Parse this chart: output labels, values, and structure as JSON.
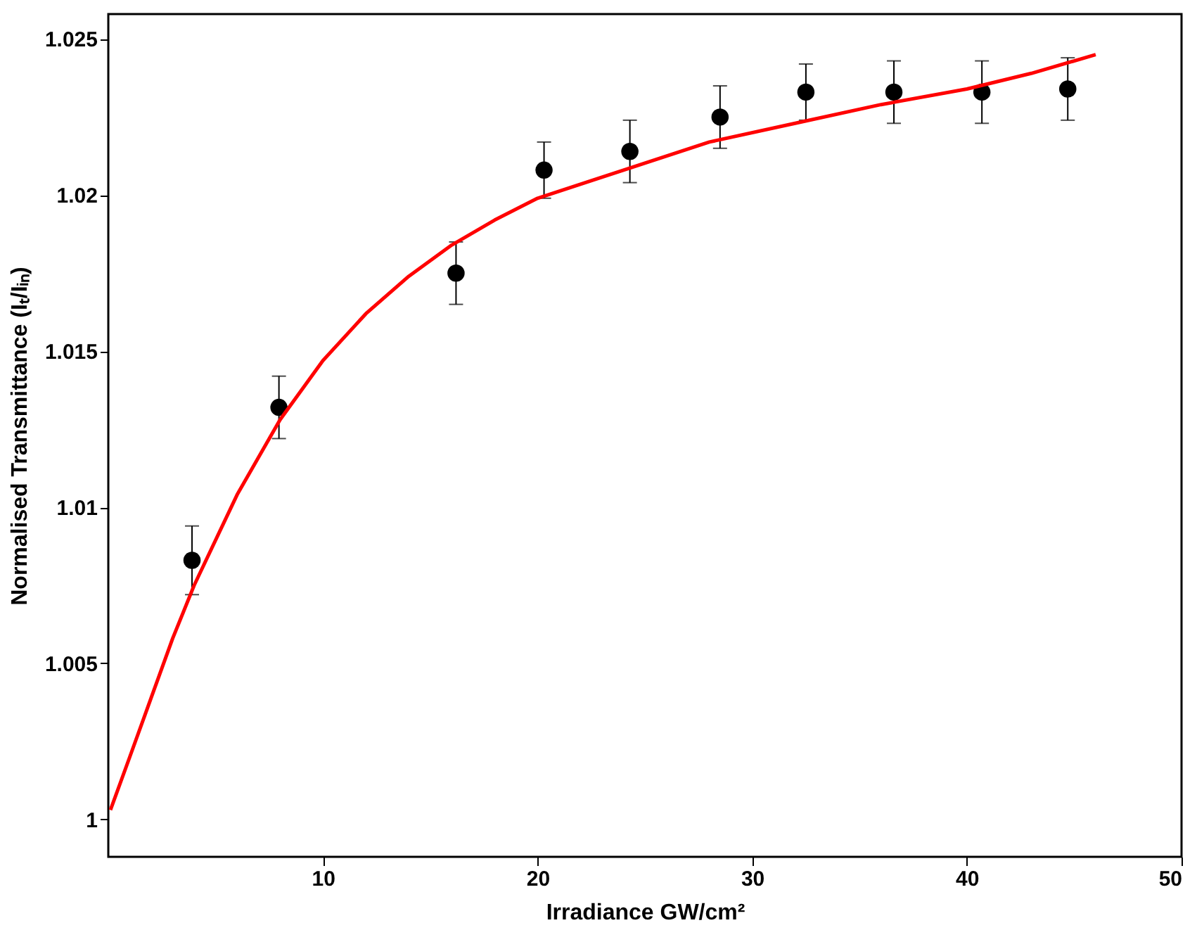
{
  "chart_data": {
    "type": "scatter",
    "xlabel": "Irradiance GW/cm²",
    "ylabel": "Normalised Transmittance (Iₜ/Iᵢₙ)",
    "xlim": [
      0,
      50
    ],
    "ylim": [
      0.9988,
      1.0258
    ],
    "xticks": [
      10,
      20,
      30,
      40,
      50
    ],
    "yticks": [
      1,
      1.005,
      1.01,
      1.015,
      1.02,
      1.025
    ],
    "grid": false,
    "series": [
      {
        "type": "scatter",
        "color": "#000000",
        "marker": "circle",
        "x": [
          3.9,
          7.95,
          16.2,
          20.3,
          24.3,
          28.5,
          32.5,
          36.6,
          40.7,
          44.7
        ],
        "values": [
          1.0083,
          1.0132,
          1.0175,
          1.0208,
          1.0214,
          1.0225,
          1.0233,
          1.0233,
          1.0233,
          1.0234
        ],
        "errors": [
          0.0011,
          0.001,
          0.001,
          0.0009,
          0.001,
          0.001,
          0.0009,
          0.001,
          0.001,
          0.001
        ]
      },
      {
        "type": "line",
        "color": "#ff0000",
        "marker": "none",
        "line_style": "solid",
        "x": [
          0.1,
          1,
          2,
          3,
          4,
          6,
          8,
          10,
          12,
          14,
          16,
          18,
          20,
          24,
          28,
          32,
          36,
          40,
          43,
          46
        ],
        "values": [
          1.0003,
          1.002,
          1.0039,
          1.0058,
          1.0075,
          1.0104,
          1.0128,
          1.0147,
          1.0162,
          1.0174,
          1.0184,
          1.0192,
          1.0199,
          1.0208,
          1.0217,
          1.0223,
          1.0229,
          1.0234,
          1.0239,
          1.0245
        ]
      }
    ]
  }
}
